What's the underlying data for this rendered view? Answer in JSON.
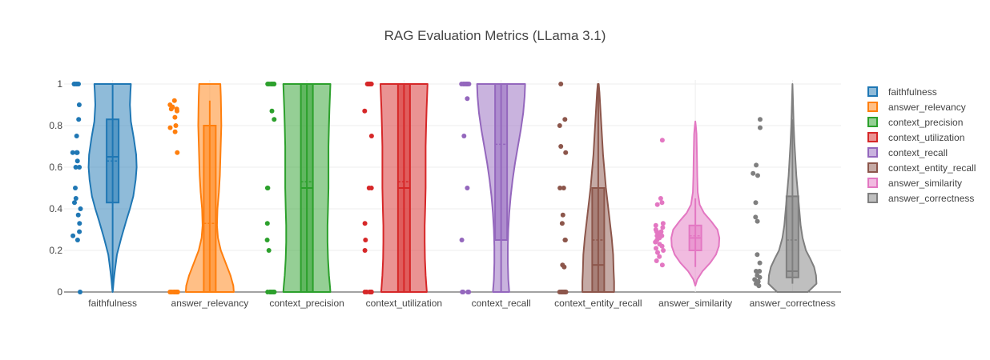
{
  "chart_data": {
    "type": "violin",
    "title": "RAG Evaluation Metrics (LLama 3.1)",
    "xlabel": "",
    "ylabel": "",
    "ylim": [
      0,
      1
    ],
    "y_ticks": [
      "0",
      "0.2",
      "0.4",
      "0.6",
      "0.8",
      "1"
    ],
    "y_tick_values": [
      0,
      0.2,
      0.4,
      0.6,
      0.8,
      1
    ],
    "grid": true,
    "legend_position": "right",
    "categories": [
      "faithfulness",
      "answer_relevancy",
      "context_precision",
      "context_utilization",
      "context_recall",
      "context_entity_recall",
      "answer_similarity",
      "answer_correctness"
    ],
    "series": [
      {
        "name": "faithfulness",
        "color": "#1f77b4",
        "box": {
          "q1": 0.43,
          "median": 0.65,
          "q3": 0.83,
          "whisker_low": 0.0,
          "whisker_high": 1.0,
          "mean": 0.63
        },
        "points": [
          1,
          1,
          1,
          1,
          1,
          0.9,
          0.83,
          0.75,
          0.67,
          0.67,
          0.67,
          0.67,
          0.63,
          0.6,
          0.6,
          0.5,
          0.45,
          0.43,
          0.4,
          0.37,
          0.33,
          0.29,
          0.27,
          0.25,
          0.0
        ],
        "violin": [
          [
            0.0,
            0.0
          ],
          [
            0.02,
            0.02
          ],
          [
            0.06,
            0.05
          ],
          [
            0.1,
            0.09
          ],
          [
            0.18,
            0.18
          ],
          [
            0.26,
            0.36
          ],
          [
            0.34,
            0.56
          ],
          [
            0.4,
            0.72
          ],
          [
            0.46,
            0.86
          ],
          [
            0.54,
            0.96
          ],
          [
            0.6,
            1.0
          ],
          [
            0.66,
            0.98
          ],
          [
            0.74,
            0.88
          ],
          [
            0.82,
            0.76
          ],
          [
            0.9,
            0.72
          ],
          [
            0.96,
            0.74
          ],
          [
            1.0,
            0.76
          ]
        ]
      },
      {
        "name": "answer_relevancy",
        "color": "#ff7f0e",
        "box": {
          "q1": 0.0,
          "median": 0.0,
          "q3": 0.8,
          "whisker_low": 0.0,
          "whisker_high": 0.92,
          "mean": 0.33
        },
        "points": [
          0.92,
          0.9,
          0.89,
          0.88,
          0.88,
          0.87,
          0.84,
          0.8,
          0.79,
          0.77,
          0.67,
          0,
          0,
          0,
          0,
          0,
          0,
          0,
          0,
          0,
          0,
          0,
          0,
          0
        ],
        "violin": [
          [
            0.0,
            1.0
          ],
          [
            0.03,
            0.98
          ],
          [
            0.08,
            0.86
          ],
          [
            0.14,
            0.66
          ],
          [
            0.2,
            0.46
          ],
          [
            0.26,
            0.34
          ],
          [
            0.32,
            0.3
          ],
          [
            0.4,
            0.32
          ],
          [
            0.48,
            0.38
          ],
          [
            0.56,
            0.42
          ],
          [
            0.64,
            0.44
          ],
          [
            0.72,
            0.46
          ],
          [
            0.8,
            0.48
          ],
          [
            0.88,
            0.47
          ],
          [
            0.94,
            0.46
          ],
          [
            1.0,
            0.44
          ]
        ]
      },
      {
        "name": "context_precision",
        "color": "#2ca02c",
        "box": {
          "q1": 0.0,
          "median": 0.5,
          "q3": 1.0,
          "whisker_low": 0.0,
          "whisker_high": 1.0,
          "mean": 0.53
        },
        "points": [
          1,
          1,
          1,
          1,
          1,
          1,
          1,
          0.87,
          0.83,
          0.5,
          0.5,
          0.33,
          0.25,
          0.2,
          0,
          0,
          0,
          0,
          0,
          0,
          0,
          0
        ],
        "violin": [
          [
            0.0,
            0.98
          ],
          [
            0.03,
            0.96
          ],
          [
            0.08,
            0.92
          ],
          [
            0.16,
            0.88
          ],
          [
            0.24,
            0.86
          ],
          [
            0.32,
            0.86
          ],
          [
            0.4,
            0.88
          ],
          [
            0.5,
            0.9
          ],
          [
            0.6,
            0.9
          ],
          [
            0.7,
            0.9
          ],
          [
            0.8,
            0.92
          ],
          [
            0.88,
            0.94
          ],
          [
            0.94,
            0.96
          ],
          [
            1.0,
            0.98
          ]
        ]
      },
      {
        "name": "context_utilization",
        "color": "#d62728",
        "box": {
          "q1": 0.0,
          "median": 0.5,
          "q3": 1.0,
          "whisker_low": 0.0,
          "whisker_high": 1.0,
          "mean": 0.53
        },
        "points": [
          1,
          1,
          1,
          1,
          1,
          1,
          1,
          0.87,
          0.75,
          0.5,
          0.5,
          0.33,
          0.25,
          0.2,
          0,
          0,
          0,
          0,
          0,
          0,
          0
        ],
        "violin": [
          [
            0.0,
            0.95
          ],
          [
            0.03,
            0.93
          ],
          [
            0.08,
            0.9
          ],
          [
            0.16,
            0.87
          ],
          [
            0.24,
            0.86
          ],
          [
            0.32,
            0.86
          ],
          [
            0.4,
            0.88
          ],
          [
            0.5,
            0.9
          ],
          [
            0.6,
            0.9
          ],
          [
            0.7,
            0.9
          ],
          [
            0.8,
            0.92
          ],
          [
            0.88,
            0.94
          ],
          [
            0.94,
            0.96
          ],
          [
            1.0,
            0.98
          ]
        ]
      },
      {
        "name": "context_recall",
        "color": "#9467bd",
        "box": {
          "q1": 0.25,
          "median": 1.0,
          "q3": 1.0,
          "whisker_low": 0.0,
          "whisker_high": 1.0,
          "mean": 0.71
        },
        "points": [
          1,
          1,
          1,
          1,
          1,
          1,
          1,
          1,
          1,
          0.93,
          0.75,
          0.5,
          0.25,
          0,
          0,
          0,
          0,
          0
        ],
        "violin": [
          [
            0.0,
            0.34
          ],
          [
            0.06,
            0.3
          ],
          [
            0.14,
            0.28
          ],
          [
            0.22,
            0.28
          ],
          [
            0.3,
            0.3
          ],
          [
            0.38,
            0.34
          ],
          [
            0.46,
            0.4
          ],
          [
            0.54,
            0.48
          ],
          [
            0.62,
            0.58
          ],
          [
            0.7,
            0.7
          ],
          [
            0.78,
            0.82
          ],
          [
            0.86,
            0.92
          ],
          [
            0.94,
            0.98
          ],
          [
            1.0,
            1.0
          ]
        ]
      },
      {
        "name": "context_entity_recall",
        "color": "#8c564b",
        "box": {
          "q1": 0.0,
          "median": 0.13,
          "q3": 0.5,
          "whisker_low": 0.0,
          "whisker_high": 1.0,
          "mean": 0.25
        },
        "points": [
          1,
          0.83,
          0.8,
          0.7,
          0.67,
          0.5,
          0.5,
          0.37,
          0.33,
          0.25,
          0.25,
          0.13,
          0.12,
          0,
          0,
          0,
          0,
          0,
          0,
          0,
          0,
          0,
          0,
          0
        ],
        "violin": [
          [
            0.0,
            0.66
          ],
          [
            0.05,
            0.66
          ],
          [
            0.1,
            0.64
          ],
          [
            0.18,
            0.62
          ],
          [
            0.26,
            0.56
          ],
          [
            0.34,
            0.48
          ],
          [
            0.42,
            0.4
          ],
          [
            0.5,
            0.32
          ],
          [
            0.58,
            0.26
          ],
          [
            0.66,
            0.2
          ],
          [
            0.74,
            0.16
          ],
          [
            0.82,
            0.12
          ],
          [
            0.9,
            0.08
          ],
          [
            0.96,
            0.05
          ],
          [
            1.0,
            0.02
          ]
        ]
      },
      {
        "name": "answer_similarity",
        "color": "#e377c2",
        "box": {
          "q1": 0.2,
          "median": 0.26,
          "q3": 0.32,
          "whisker_low": 0.12,
          "whisker_high": 0.45,
          "mean": 0.27
        },
        "points": [
          0.73,
          0.45,
          0.43,
          0.42,
          0.33,
          0.32,
          0.31,
          0.3,
          0.29,
          0.29,
          0.28,
          0.28,
          0.27,
          0.27,
          0.26,
          0.25,
          0.24,
          0.23,
          0.22,
          0.21,
          0.2,
          0.19,
          0.17,
          0.15,
          0.13
        ],
        "violin": [
          [
            0.03,
            0.0
          ],
          [
            0.06,
            0.08
          ],
          [
            0.1,
            0.3
          ],
          [
            0.14,
            0.62
          ],
          [
            0.18,
            0.86
          ],
          [
            0.22,
            0.98
          ],
          [
            0.26,
            1.0
          ],
          [
            0.3,
            0.92
          ],
          [
            0.34,
            0.66
          ],
          [
            0.38,
            0.36
          ],
          [
            0.42,
            0.18
          ],
          [
            0.48,
            0.1
          ],
          [
            0.56,
            0.08
          ],
          [
            0.64,
            0.07
          ],
          [
            0.7,
            0.06
          ],
          [
            0.76,
            0.05
          ],
          [
            0.8,
            0.02
          ],
          [
            0.82,
            0.0
          ]
        ]
      },
      {
        "name": "answer_correctness",
        "color": "#7f7f7f",
        "box": {
          "q1": 0.07,
          "median": 0.1,
          "q3": 0.46,
          "whisker_low": 0.04,
          "whisker_high": 0.83,
          "mean": 0.25
        },
        "points": [
          0.83,
          0.79,
          0.61,
          0.57,
          0.56,
          0.43,
          0.36,
          0.34,
          0.18,
          0.14,
          0.1,
          0.1,
          0.08,
          0.07,
          0.06,
          0.05,
          0.05,
          0.04,
          0.03
        ],
        "violin": [
          [
            0.0,
            0.64
          ],
          [
            0.04,
            1.0
          ],
          [
            0.08,
            0.98
          ],
          [
            0.12,
            0.9
          ],
          [
            0.16,
            0.74
          ],
          [
            0.2,
            0.56
          ],
          [
            0.26,
            0.42
          ],
          [
            0.32,
            0.34
          ],
          [
            0.4,
            0.28
          ],
          [
            0.48,
            0.22
          ],
          [
            0.56,
            0.16
          ],
          [
            0.64,
            0.12
          ],
          [
            0.72,
            0.08
          ],
          [
            0.8,
            0.05
          ],
          [
            0.88,
            0.03
          ],
          [
            0.96,
            0.01
          ],
          [
            1.0,
            0.0
          ]
        ]
      }
    ]
  }
}
